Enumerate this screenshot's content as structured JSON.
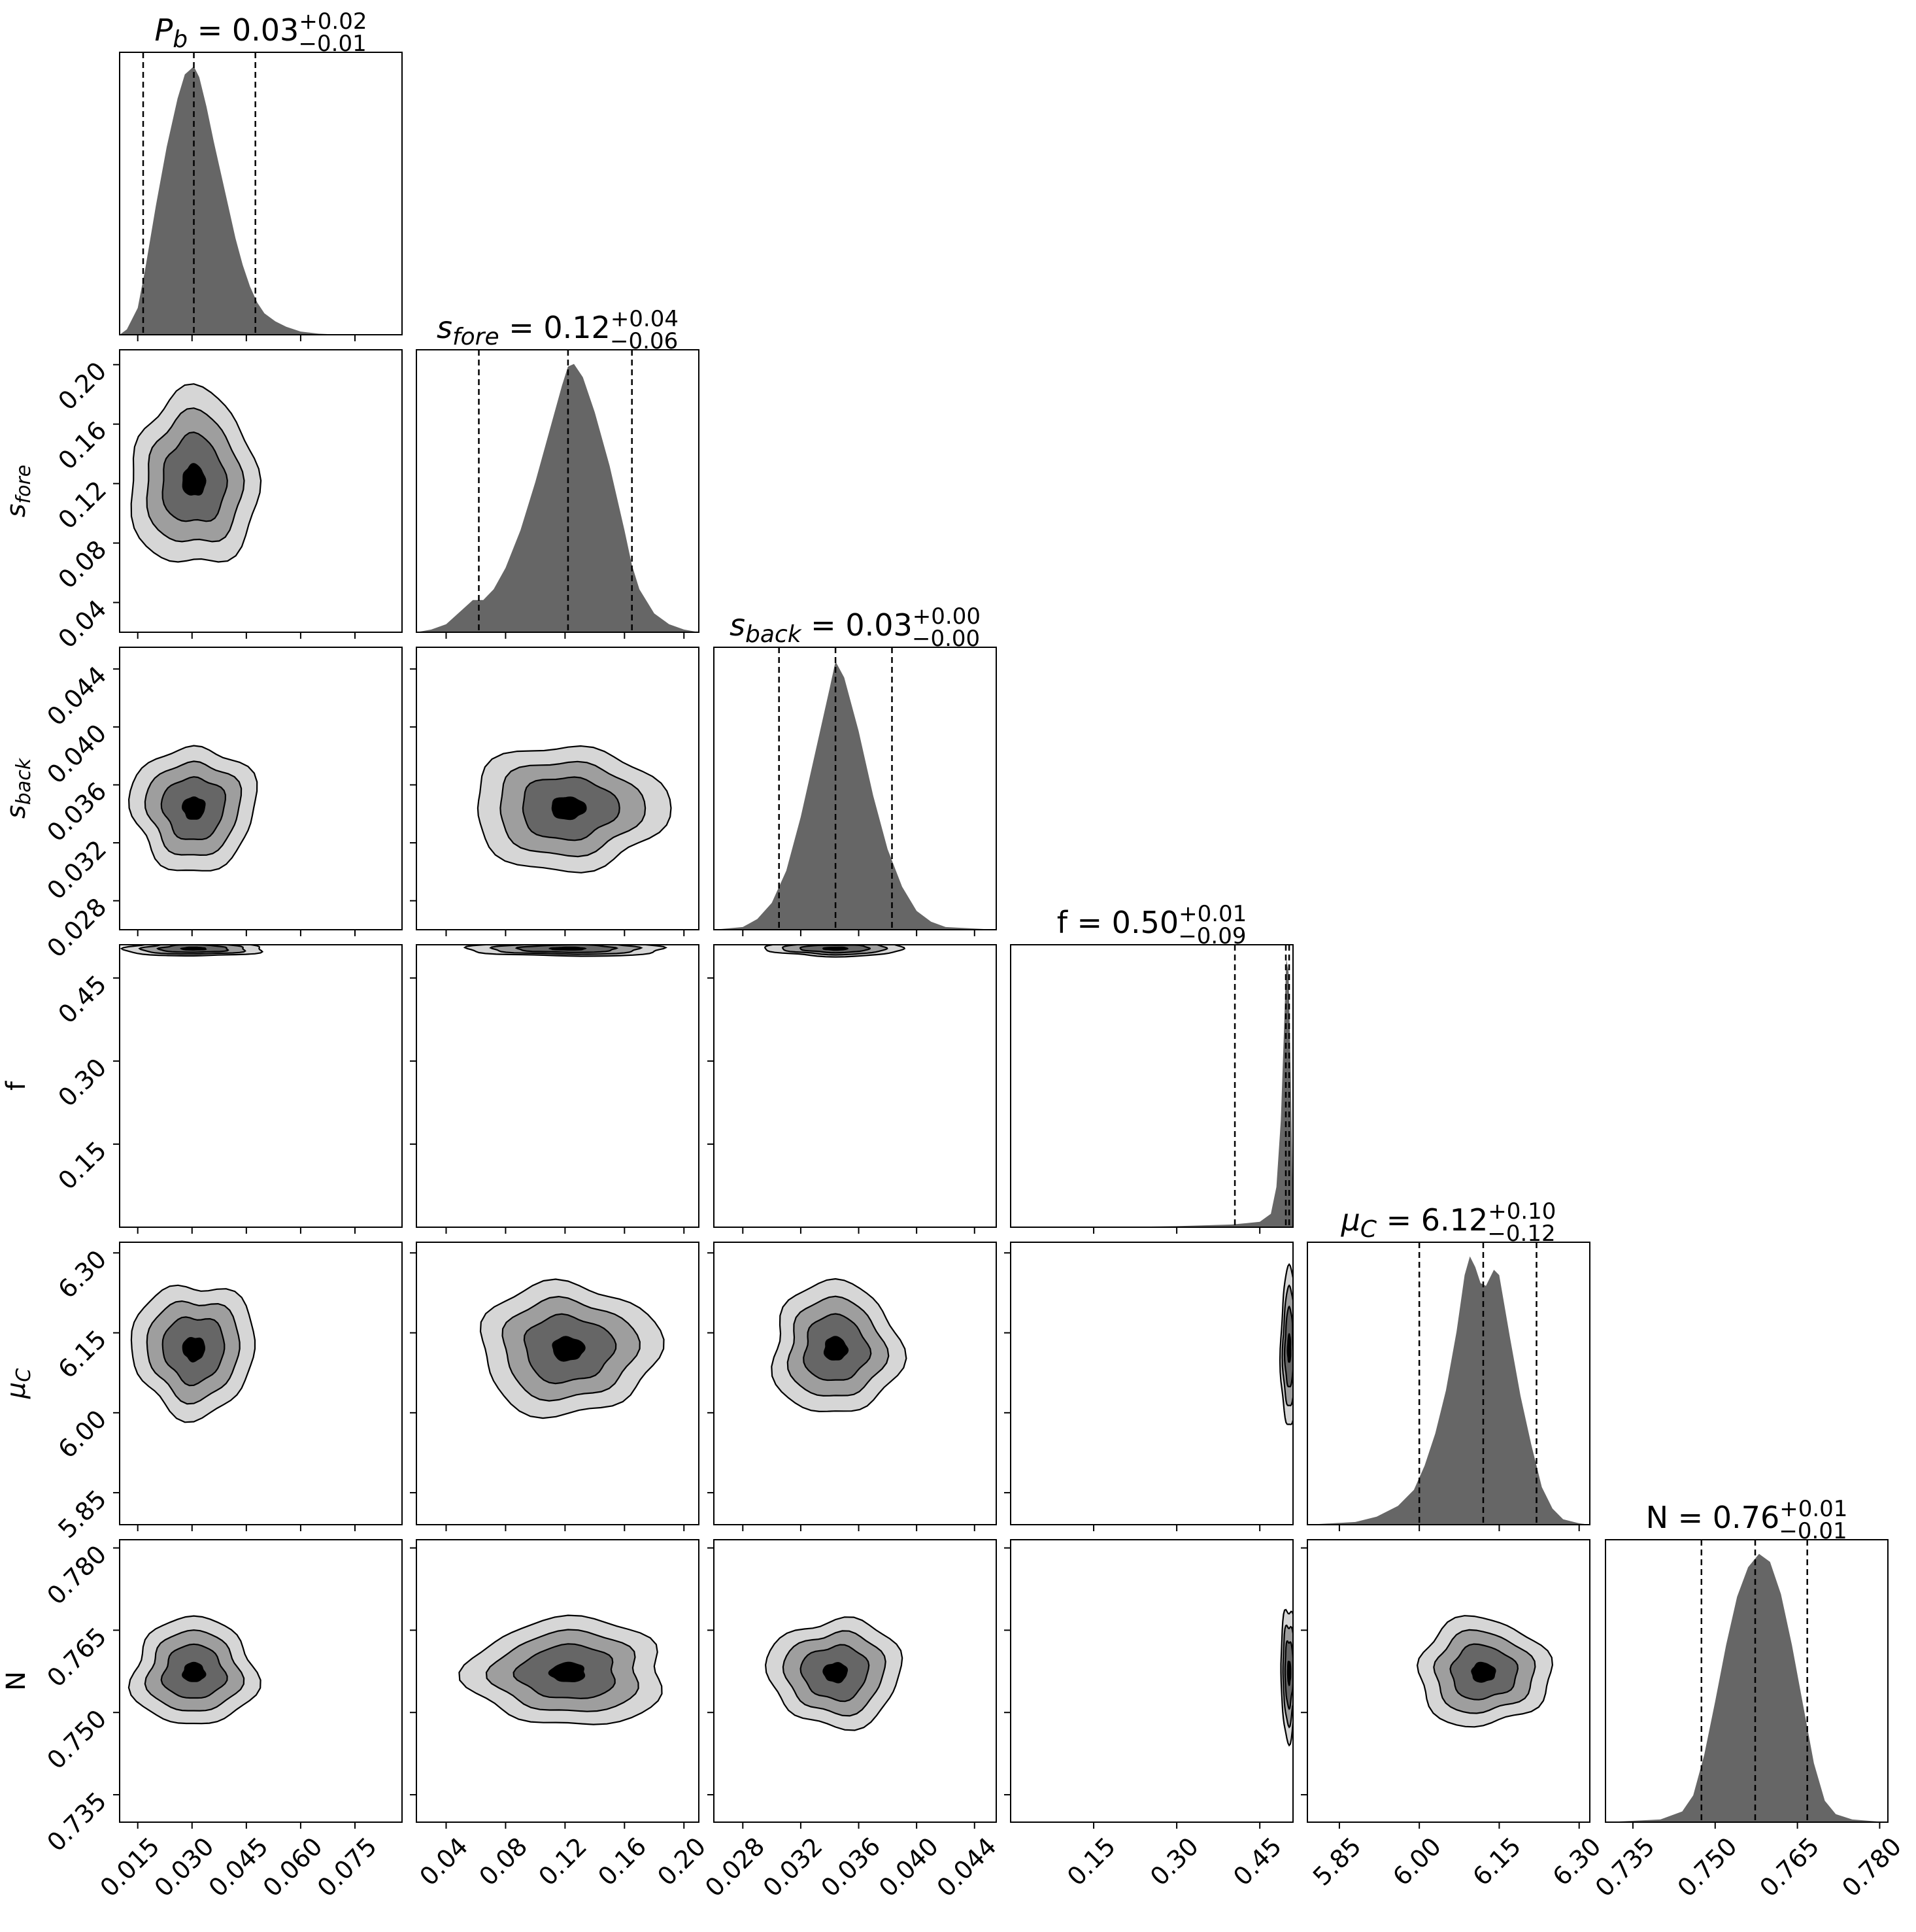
{
  "chart_data": {
    "type": "corner",
    "parameters": [
      {
        "key": "Pb",
        "label": "P",
        "label_sub": "b",
        "range": [
          0.01,
          0.088
        ],
        "ticks": [
          "0.015",
          "0.030",
          "0.045",
          "0.060",
          "0.075"
        ],
        "tick_values": [
          0.015,
          0.03,
          0.045,
          0.06,
          0.075
        ],
        "median": 0.03,
        "plus": "+0.02",
        "minus": "−0.01",
        "median_text": "0.03",
        "q16": 0.0165,
        "q50": 0.0305,
        "q84": 0.0475,
        "hist": [
          [
            0.01,
            0
          ],
          [
            0.012,
            0.02
          ],
          [
            0.015,
            0.1
          ],
          [
            0.017,
            0.24
          ],
          [
            0.02,
            0.48
          ],
          [
            0.023,
            0.7
          ],
          [
            0.026,
            0.88
          ],
          [
            0.028,
            0.97
          ],
          [
            0.0305,
            1.0
          ],
          [
            0.032,
            0.96
          ],
          [
            0.034,
            0.85
          ],
          [
            0.036,
            0.72
          ],
          [
            0.038,
            0.6
          ],
          [
            0.04,
            0.48
          ],
          [
            0.042,
            0.36
          ],
          [
            0.044,
            0.26
          ],
          [
            0.046,
            0.18
          ],
          [
            0.048,
            0.12
          ],
          [
            0.05,
            0.08
          ],
          [
            0.053,
            0.05
          ],
          [
            0.056,
            0.03
          ],
          [
            0.06,
            0.012
          ],
          [
            0.065,
            0.004
          ],
          [
            0.07,
            0.001
          ],
          [
            0.088,
            0
          ]
        ]
      },
      {
        "key": "sfore",
        "label": "s",
        "label_sub": "fore",
        "range": [
          0.02,
          0.21
        ],
        "ticks": [
          "0.04",
          "0.08",
          "0.12",
          "0.16",
          "0.20"
        ],
        "tick_values": [
          0.04,
          0.08,
          0.12,
          0.16,
          0.2
        ],
        "median": 0.12,
        "plus": "+0.04",
        "minus": "−0.06",
        "median_text": "0.12",
        "q16": 0.062,
        "q50": 0.122,
        "q84": 0.165,
        "hist": [
          [
            0.02,
            0
          ],
          [
            0.03,
            0.01
          ],
          [
            0.04,
            0.03
          ],
          [
            0.05,
            0.08
          ],
          [
            0.058,
            0.12
          ],
          [
            0.065,
            0.12
          ],
          [
            0.072,
            0.16
          ],
          [
            0.08,
            0.24
          ],
          [
            0.09,
            0.38
          ],
          [
            0.1,
            0.56
          ],
          [
            0.11,
            0.76
          ],
          [
            0.118,
            0.92
          ],
          [
            0.122,
            0.99
          ],
          [
            0.126,
            1.0
          ],
          [
            0.132,
            0.95
          ],
          [
            0.14,
            0.82
          ],
          [
            0.15,
            0.62
          ],
          [
            0.16,
            0.38
          ],
          [
            0.165,
            0.25
          ],
          [
            0.17,
            0.16
          ],
          [
            0.18,
            0.07
          ],
          [
            0.19,
            0.03
          ],
          [
            0.2,
            0.01
          ],
          [
            0.21,
            0
          ]
        ]
      },
      {
        "key": "sback",
        "label": "s",
        "label_sub": "back",
        "range": [
          0.026,
          0.0455
        ],
        "ticks": [
          "0.028",
          "0.032",
          "0.036",
          "0.040",
          "0.044"
        ],
        "tick_values": [
          0.028,
          0.032,
          0.036,
          0.04,
          0.044
        ],
        "median": 0.03,
        "plus": "+0.00",
        "minus": "−0.00",
        "median_text": "0.03",
        "q16": 0.0305,
        "q50": 0.0344,
        "q84": 0.0383,
        "hist": [
          [
            0.026,
            0
          ],
          [
            0.028,
            0.01
          ],
          [
            0.029,
            0.04
          ],
          [
            0.03,
            0.1
          ],
          [
            0.031,
            0.22
          ],
          [
            0.032,
            0.42
          ],
          [
            0.033,
            0.66
          ],
          [
            0.034,
            0.9
          ],
          [
            0.0344,
            1.0
          ],
          [
            0.035,
            0.94
          ],
          [
            0.036,
            0.74
          ],
          [
            0.037,
            0.5
          ],
          [
            0.038,
            0.3
          ],
          [
            0.039,
            0.16
          ],
          [
            0.04,
            0.07
          ],
          [
            0.041,
            0.03
          ],
          [
            0.042,
            0.01
          ],
          [
            0.0455,
            0
          ]
        ]
      },
      {
        "key": "f",
        "label": "f",
        "label_sub": "",
        "range": [
          0.0,
          0.51
        ],
        "ticks": [
          "0.15",
          "0.30",
          "0.45"
        ],
        "tick_values": [
          0.15,
          0.3,
          0.45
        ],
        "median": 0.5,
        "plus": "+0.01",
        "minus": "−0.09",
        "median_text": "0.50",
        "q16": 0.405,
        "q50": 0.497,
        "q84": 0.503,
        "hist": [
          [
            0.0,
            0
          ],
          [
            0.2,
            0.001
          ],
          [
            0.3,
            0.004
          ],
          [
            0.4,
            0.01
          ],
          [
            0.45,
            0.02
          ],
          [
            0.47,
            0.05
          ],
          [
            0.48,
            0.15
          ],
          [
            0.488,
            0.4
          ],
          [
            0.494,
            0.75
          ],
          [
            0.498,
            1.0
          ],
          [
            0.502,
            0.95
          ],
          [
            0.506,
            0.55
          ],
          [
            0.509,
            0.15
          ],
          [
            0.51,
            0
          ]
        ]
      },
      {
        "key": "muC",
        "label": "μ",
        "label_sub": "C",
        "range": [
          5.79,
          6.32
        ],
        "ticks": [
          "5.85",
          "6.00",
          "6.15",
          "6.30"
        ],
        "tick_values": [
          5.85,
          6.0,
          6.15,
          6.3
        ],
        "median": 6.12,
        "plus": "+0.10",
        "minus": "−0.12",
        "median_text": "6.12",
        "q16": 6.0,
        "q50": 6.12,
        "q84": 6.22,
        "hist": [
          [
            5.79,
            0
          ],
          [
            5.88,
            0.01
          ],
          [
            5.92,
            0.03
          ],
          [
            5.96,
            0.07
          ],
          [
            5.99,
            0.13
          ],
          [
            6.01,
            0.22
          ],
          [
            6.03,
            0.34
          ],
          [
            6.05,
            0.5
          ],
          [
            6.07,
            0.72
          ],
          [
            6.085,
            0.93
          ],
          [
            6.095,
            1.0
          ],
          [
            6.105,
            0.96
          ],
          [
            6.115,
            0.9
          ],
          [
            6.125,
            0.89
          ],
          [
            6.14,
            0.95
          ],
          [
            6.15,
            0.93
          ],
          [
            6.17,
            0.7
          ],
          [
            6.19,
            0.48
          ],
          [
            6.21,
            0.3
          ],
          [
            6.23,
            0.14
          ],
          [
            6.25,
            0.06
          ],
          [
            6.27,
            0.02
          ],
          [
            6.3,
            0.005
          ],
          [
            6.32,
            0
          ]
        ]
      },
      {
        "key": "N",
        "label": "N",
        "label_sub": "",
        "range": [
          0.73,
          0.7815
        ],
        "ticks": [
          "0.735",
          "0.750",
          "0.765",
          "0.780"
        ],
        "tick_values": [
          0.735,
          0.75,
          0.765,
          0.78
        ],
        "median": 0.76,
        "plus": "+0.01",
        "minus": "−0.01",
        "median_text": "0.76",
        "q16": 0.7475,
        "q50": 0.7573,
        "q84": 0.7668,
        "hist": [
          [
            0.73,
            0
          ],
          [
            0.74,
            0.01
          ],
          [
            0.744,
            0.04
          ],
          [
            0.746,
            0.1
          ],
          [
            0.748,
            0.25
          ],
          [
            0.75,
            0.45
          ],
          [
            0.752,
            0.66
          ],
          [
            0.754,
            0.84
          ],
          [
            0.756,
            0.95
          ],
          [
            0.758,
            1.0
          ],
          [
            0.76,
            0.97
          ],
          [
            0.762,
            0.85
          ],
          [
            0.764,
            0.66
          ],
          [
            0.766,
            0.44
          ],
          [
            0.768,
            0.22
          ],
          [
            0.77,
            0.08
          ],
          [
            0.772,
            0.03
          ],
          [
            0.775,
            0.01
          ],
          [
            0.78,
            0.002
          ],
          [
            0.7815,
            0
          ]
        ]
      }
    ],
    "contour_fills": [
      "#d6d6d6",
      "#9e9e9e",
      "#666666",
      "#000000"
    ],
    "contours": {
      "1-0": {
        "center": [
          0.0305,
          0.122
        ],
        "scale": [
          0.0088,
          0.0295
        ]
      },
      "2-0": {
        "center": [
          0.0305,
          0.0344
        ],
        "scale": [
          0.0086,
          0.00215
        ]
      },
      "2-1": {
        "center": [
          0.122,
          0.0344
        ],
        "scale": [
          0.0325,
          0.00215
        ]
      },
      "3-0": {
        "center": [
          0.0305,
          0.503
        ],
        "scale": [
          0.0095,
          0.0068
        ]
      },
      "3-1": {
        "center": [
          0.122,
          0.503
        ],
        "scale": [
          0.033,
          0.0068
        ]
      },
      "3-2": {
        "center": [
          0.0344,
          0.503
        ],
        "scale": [
          0.0024,
          0.0068
        ]
      },
      "4-0": {
        "center": [
          0.0305,
          6.12
        ],
        "scale": [
          0.0085,
          0.062
        ]
      },
      "4-1": {
        "center": [
          0.122,
          6.12
        ],
        "scale": [
          0.03,
          0.062
        ]
      },
      "4-2": {
        "center": [
          0.0344,
          6.12
        ],
        "scale": [
          0.0022,
          0.062
        ]
      },
      "4-3": {
        "center": [
          0.503,
          6.12
        ],
        "scale": [
          0.0075,
          0.075
        ]
      },
      "5-0": {
        "center": [
          0.0305,
          0.7573
        ],
        "scale": [
          0.0085,
          0.0049
        ]
      },
      "5-1": {
        "center": [
          0.122,
          0.7573
        ],
        "scale": [
          0.033,
          0.0049
        ]
      },
      "5-2": {
        "center": [
          0.0344,
          0.7573
        ],
        "scale": [
          0.0023,
          0.0049
        ]
      },
      "5-3": {
        "center": [
          0.503,
          0.7573
        ],
        "scale": [
          0.0075,
          0.006
        ]
      },
      "5-4": {
        "center": [
          6.12,
          0.7573
        ],
        "scale": [
          0.062,
          0.0049
        ]
      }
    },
    "grid": false,
    "legend": "none"
  }
}
